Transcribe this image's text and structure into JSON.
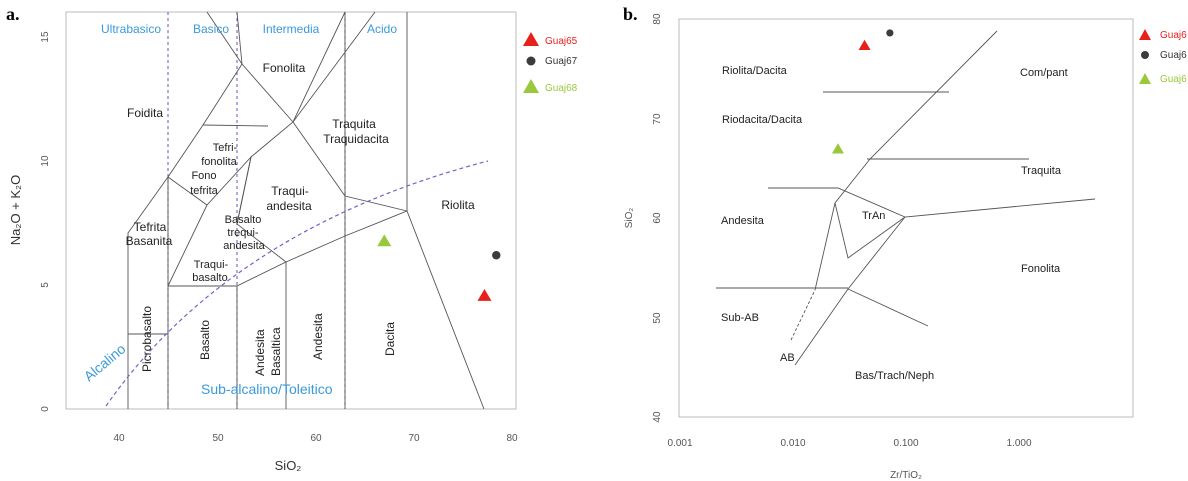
{
  "chart_data": [
    {
      "type": "scatter",
      "panel_label": "a.",
      "xlabel": "SiO₂",
      "ylabel": "Na₂O + K₂O",
      "xlim": [
        35,
        81
      ],
      "ylim": [
        0,
        16
      ],
      "x_ticks": [
        "40",
        "50",
        "60",
        "70",
        "80"
      ],
      "y_ticks": [
        "0",
        "5",
        "10",
        "15"
      ],
      "column_labels": [
        "Ultrabasico",
        "Basico",
        "Intermedia",
        "Acido"
      ],
      "series_labels": [
        "Alcalino",
        "Sub-alcalino/Toleitico"
      ],
      "fields": [
        "Foidita",
        "Fonolita",
        "Tefri-",
        "fonolita",
        "Traquita",
        "Traquidacita",
        "Fono",
        "tefrita",
        "Traqui-",
        "andesita",
        "Tefrita",
        "Basanita",
        "Basalto",
        "trequi-",
        "andesita",
        "Traqui-",
        "basalto",
        "Riolita",
        "Picrobasalto",
        "Basalto",
        "Andesita",
        "Basaltica",
        "Andesita",
        "Dacita"
      ],
      "series": [
        {
          "name": "Guaj65",
          "color": "#e8201a",
          "marker": "triangle",
          "x": 77.2,
          "y": 4.6
        },
        {
          "name": "Guaj67",
          "color": "#3c3c3c",
          "marker": "circle",
          "x": 78.4,
          "y": 6.2
        },
        {
          "name": "Guaj68",
          "color": "#9ac83c",
          "marker": "triangle",
          "x": 67.0,
          "y": 6.8
        }
      ]
    },
    {
      "type": "scatter",
      "panel_label": "b.",
      "xlabel": "Zr/TiO₂",
      "ylabel": "SiO₂",
      "xscale": "log",
      "xlim": [
        0.001,
        10
      ],
      "ylim": [
        40,
        80
      ],
      "x_ticks": [
        "0.001",
        "0.010",
        "0.100",
        "1.000"
      ],
      "y_ticks": [
        "40",
        "50",
        "60",
        "70",
        "80"
      ],
      "fields": [
        "Riolita/Dacita",
        "Riodacita/Dacita",
        "Com/pant",
        "Traquita",
        "Andesita",
        "TrAn",
        "Fonolita",
        "Sub-AB",
        "AB",
        "Bas/Trach/Neph"
      ],
      "series": [
        {
          "name": "Guaj6",
          "color": "#e8201a",
          "marker": "triangle",
          "x": 0.043,
          "y": 77.4
        },
        {
          "name": "Guaj6",
          "color": "#3c3c3c",
          "marker": "circle",
          "x": 0.072,
          "y": 78.6
        },
        {
          "name": "Guaj6",
          "color": "#9ac83c",
          "marker": "triangle",
          "x": 0.025,
          "y": 67.0
        }
      ]
    }
  ]
}
